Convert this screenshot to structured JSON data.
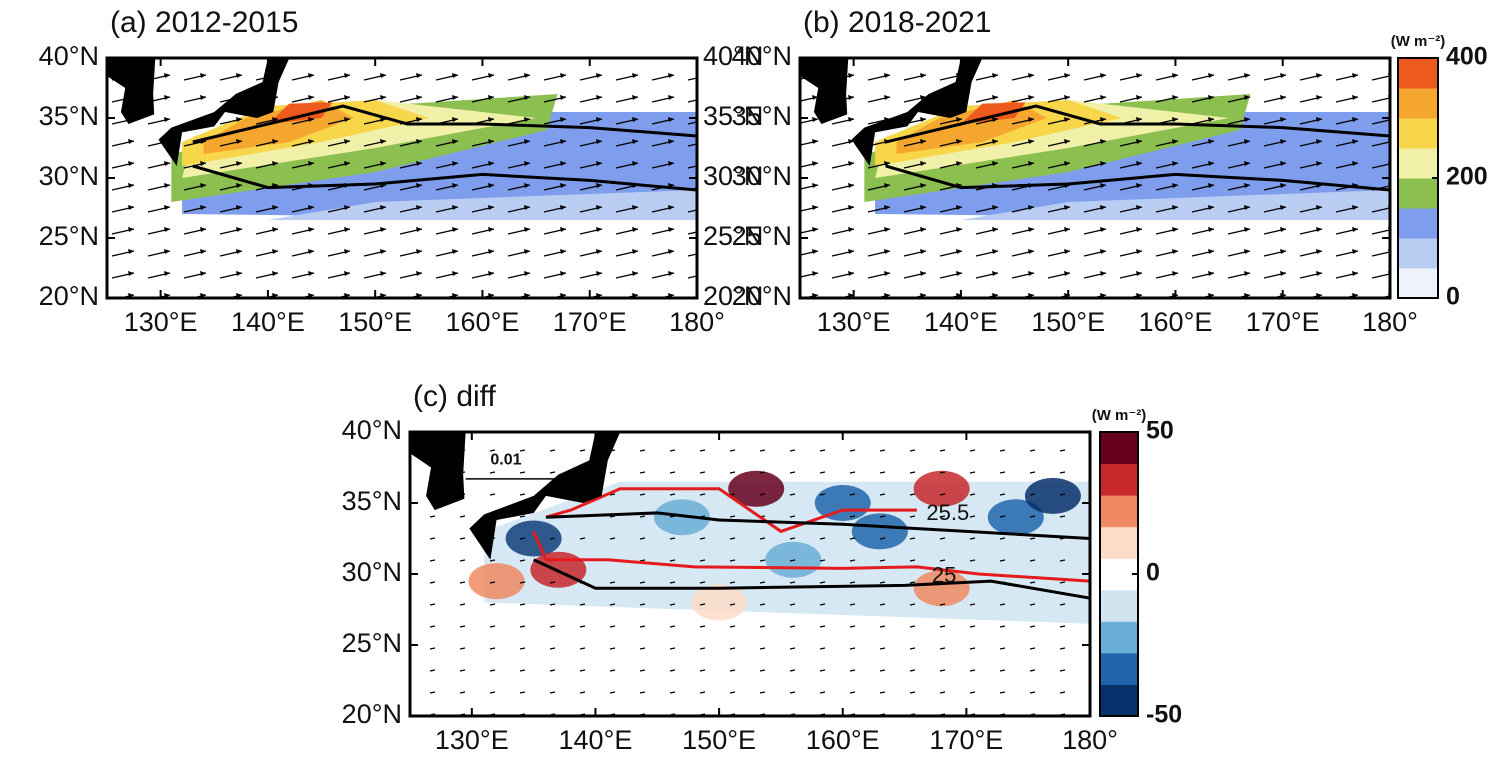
{
  "panels": [
    {
      "title": "(a) 2012-2015",
      "right_axis_labels": true,
      "xlim": [
        125,
        180
      ],
      "ylim": [
        20,
        40
      ],
      "xticks": [
        {
          "value": 130,
          "label": "130°E"
        },
        {
          "value": 140,
          "label": "140°E"
        },
        {
          "value": 150,
          "label": "150°E"
        },
        {
          "value": 160,
          "label": "160°E"
        },
        {
          "value": 170,
          "label": "170°E"
        },
        {
          "value": 180,
          "label": "180°"
        }
      ],
      "yticks": [
        {
          "value": 20,
          "label": "20°N"
        },
        {
          "value": 25,
          "label": "25°N"
        },
        {
          "value": 30,
          "label": "30°N"
        },
        {
          "value": 35,
          "label": "35°N"
        },
        {
          "value": 40,
          "label": "40°N"
        }
      ]
    },
    {
      "title": "(b) 2018-2021",
      "right_axis_labels": false,
      "xlim": [
        125,
        180
      ],
      "ylim": [
        20,
        40
      ],
      "xticks": [
        {
          "value": 130,
          "label": "130°E"
        },
        {
          "value": 140,
          "label": "140°E"
        },
        {
          "value": 150,
          "label": "150°E"
        },
        {
          "value": 160,
          "label": "160°E"
        },
        {
          "value": 170,
          "label": "170°E"
        },
        {
          "value": 180,
          "label": "180°"
        }
      ],
      "yticks": [
        {
          "value": 20,
          "label": "20°N"
        },
        {
          "value": 25,
          "label": "25°N"
        },
        {
          "value": 30,
          "label": "30°N"
        },
        {
          "value": 35,
          "label": "35°N"
        },
        {
          "value": 40,
          "label": "40°N"
        }
      ]
    },
    {
      "title": "(c) diff",
      "right_axis_labels": false,
      "xlim": [
        125,
        180
      ],
      "ylim": [
        20,
        40
      ],
      "xticks": [
        {
          "value": 130,
          "label": "130°E"
        },
        {
          "value": 140,
          "label": "140°E"
        },
        {
          "value": 150,
          "label": "150°E"
        },
        {
          "value": 160,
          "label": "160°E"
        },
        {
          "value": 170,
          "label": "170°E"
        },
        {
          "value": 180,
          "label": "180°"
        }
      ],
      "yticks": [
        {
          "value": 20,
          "label": "20°N"
        },
        {
          "value": 25,
          "label": "25°N"
        },
        {
          "value": 30,
          "label": "30°N"
        },
        {
          "value": 35,
          "label": "35°N"
        },
        {
          "value": 40,
          "label": "40°N"
        }
      ],
      "vector_scale": 0.01,
      "contour_labels": [
        "25.5",
        "25"
      ]
    }
  ],
  "colorbars": [
    {
      "unit": "(W m⁻²)",
      "lim": [
        0,
        400
      ],
      "ticks": [
        0,
        200,
        400
      ],
      "colors": [
        "#eef3fb",
        "#b9cdf3",
        "#7f9ded",
        "#8bbf4f",
        "#f0f0a8",
        "#f7d64a",
        "#f5a62f",
        "#ee5a1d"
      ]
    },
    {
      "unit": "(W m⁻²)",
      "lim": [
        -50,
        50
      ],
      "ticks": [
        -50,
        0,
        50
      ],
      "colors": [
        "#08306b",
        "#2166ac",
        "#6aaed6",
        "#d1e5f0",
        "#ffffff",
        "#fddbc7",
        "#ef8a62",
        "#c7282b",
        "#67001f"
      ]
    }
  ]
}
